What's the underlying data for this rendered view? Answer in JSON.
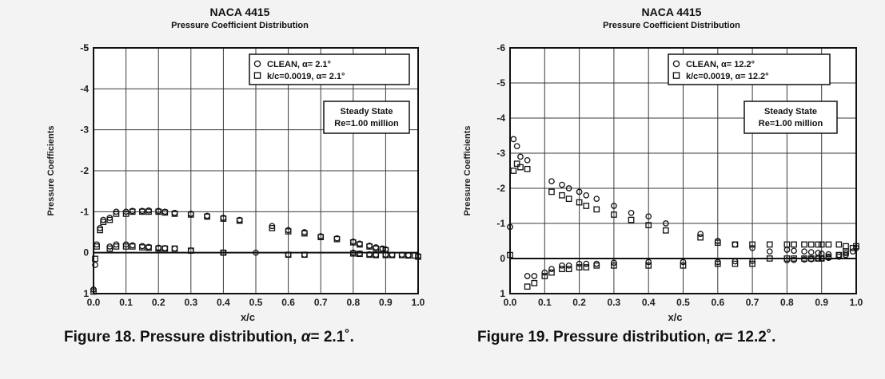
{
  "chart_data": [
    {
      "type": "scatter",
      "title": "NACA 4415",
      "subtitle": "Pressure Coefficient Distribution",
      "xlabel": "x/c",
      "ylabel": "Pressure Coefficients",
      "xlim": [
        0.0,
        1.0
      ],
      "ylim": [
        1,
        -5
      ],
      "y_axis_inverted": true,
      "grid": true,
      "x_ticks": [
        "0.0",
        "0.1",
        "0.2",
        "0.3",
        "0.4",
        "0.5",
        "0.6",
        "0.7",
        "0.8",
        "0.9",
        "1.0"
      ],
      "y_ticks": [
        "-5",
        "-5",
        "-4",
        "-3",
        "-2",
        "-1",
        "0",
        "1"
      ],
      "y_tick_values": [
        -5,
        -5,
        -4,
        -3,
        -2,
        -1,
        0,
        1
      ],
      "legend_position": "top-right",
      "legend": [
        "CLEAN, α= 2.1°",
        "k/c=0.0019, α= 2.1°"
      ],
      "annotation": [
        "Steady State",
        "Re=1.00 million"
      ],
      "series": [
        {
          "name": "CLEAN, α= 2.1°",
          "marker": "circle",
          "x": [
            0.0,
            0.005,
            0.01,
            0.02,
            0.03,
            0.05,
            0.05,
            0.07,
            0.07,
            0.1,
            0.1,
            0.12,
            0.12,
            0.15,
            0.15,
            0.17,
            0.17,
            0.2,
            0.2,
            0.22,
            0.22,
            0.25,
            0.25,
            0.3,
            0.3,
            0.35,
            0.4,
            0.4,
            0.45,
            0.5,
            0.55,
            0.6,
            0.6,
            0.65,
            0.65,
            0.7,
            0.75,
            0.8,
            0.8,
            0.82,
            0.82,
            0.85,
            0.85,
            0.87,
            0.87,
            0.89,
            0.9,
            0.9,
            0.92,
            0.95,
            0.97,
            1.0
          ],
          "y": [
            0.9,
            0.3,
            -0.2,
            -0.6,
            -0.8,
            -0.85,
            -0.15,
            -1.0,
            -0.2,
            -1.0,
            -0.2,
            -1.02,
            -0.18,
            -1.02,
            -0.16,
            -1.03,
            -0.14,
            -1.02,
            -0.12,
            -1.0,
            -0.11,
            -0.97,
            -0.1,
            -0.95,
            -0.05,
            -0.9,
            -0.85,
            0.0,
            -0.8,
            0.0,
            -0.65,
            -0.55,
            0.05,
            -0.5,
            0.05,
            -0.4,
            -0.35,
            -0.27,
            0.0,
            -0.22,
            0.02,
            -0.17,
            0.04,
            -0.13,
            0.05,
            -0.1,
            -0.08,
            0.05,
            0.05,
            0.05,
            0.06,
            0.08
          ]
        },
        {
          "name": "k/c=0.0019, α= 2.1°",
          "marker": "square",
          "x": [
            0.0,
            0.005,
            0.01,
            0.02,
            0.03,
            0.05,
            0.05,
            0.07,
            0.07,
            0.1,
            0.1,
            0.12,
            0.12,
            0.15,
            0.15,
            0.17,
            0.17,
            0.2,
            0.2,
            0.22,
            0.22,
            0.25,
            0.25,
            0.3,
            0.3,
            0.35,
            0.4,
            0.4,
            0.45,
            0.55,
            0.6,
            0.6,
            0.65,
            0.65,
            0.7,
            0.75,
            0.8,
            0.8,
            0.82,
            0.82,
            0.85,
            0.85,
            0.87,
            0.87,
            0.89,
            0.9,
            0.9,
            0.92,
            0.95,
            0.97,
            0.99,
            1.0
          ],
          "y": [
            0.95,
            0.15,
            -0.15,
            -0.55,
            -0.75,
            -0.8,
            -0.1,
            -0.95,
            -0.15,
            -0.95,
            -0.15,
            -1.0,
            -0.15,
            -1.0,
            -0.13,
            -1.0,
            -0.12,
            -1.0,
            -0.1,
            -0.98,
            -0.1,
            -0.95,
            -0.1,
            -0.93,
            -0.05,
            -0.88,
            -0.83,
            0.0,
            -0.78,
            -0.6,
            -0.52,
            0.05,
            -0.47,
            0.05,
            -0.38,
            -0.33,
            -0.25,
            0.02,
            -0.2,
            0.03,
            -0.15,
            0.05,
            -0.1,
            0.06,
            -0.08,
            -0.06,
            0.06,
            0.06,
            0.06,
            0.07,
            0.07,
            0.1
          ]
        }
      ]
    },
    {
      "type": "scatter",
      "title": "NACA 4415",
      "subtitle": "Pressure Coefficient Distribution",
      "xlabel": "x/c",
      "ylabel": "Pressure Coefficients",
      "xlim": [
        0.0,
        1.0
      ],
      "ylim": [
        1,
        -6
      ],
      "y_axis_inverted": true,
      "grid": true,
      "x_ticks": [
        "0.0",
        "0.1",
        "0.2",
        "0.3",
        "0.4",
        "0.5",
        "0.6",
        "0.7",
        "0.8",
        "0.9",
        "1.0"
      ],
      "y_ticks": [
        "-6",
        "-5",
        "-4",
        "-3",
        "-2",
        "-1",
        "0",
        "1"
      ],
      "y_tick_values": [
        -6,
        -5,
        -4,
        -3,
        -2,
        -1,
        0,
        1
      ],
      "legend_position": "top-right",
      "legend": [
        "CLEAN, α= 12.2°",
        "k/c=0.0019, α= 12.2°"
      ],
      "annotation": [
        "Steady State",
        "Re=1.00 million"
      ],
      "series": [
        {
          "name": "CLEAN, α= 12.2°",
          "marker": "circle",
          "x": [
            0.0,
            0.01,
            0.02,
            0.03,
            0.05,
            0.05,
            0.07,
            0.1,
            0.12,
            0.12,
            0.15,
            0.15,
            0.17,
            0.17,
            0.2,
            0.2,
            0.22,
            0.22,
            0.25,
            0.25,
            0.3,
            0.3,
            0.35,
            0.4,
            0.4,
            0.45,
            0.5,
            0.55,
            0.6,
            0.6,
            0.65,
            0.65,
            0.7,
            0.7,
            0.75,
            0.8,
            0.8,
            0.82,
            0.82,
            0.85,
            0.85,
            0.87,
            0.87,
            0.89,
            0.89,
            0.9,
            0.9,
            0.92,
            0.92,
            0.95,
            0.95,
            0.97,
            0.97,
            0.99,
            1.0
          ],
          "y": [
            -0.9,
            -3.4,
            -3.2,
            -2.9,
            -2.8,
            0.5,
            0.5,
            0.4,
            -2.2,
            0.3,
            -2.1,
            0.2,
            -2.0,
            0.2,
            -1.9,
            0.15,
            -1.8,
            0.15,
            -1.7,
            0.15,
            -1.5,
            0.12,
            -1.3,
            -1.2,
            0.1,
            -1.0,
            0.1,
            -0.7,
            -0.5,
            0.1,
            -0.4,
            0.08,
            -0.3,
            0.07,
            -0.2,
            -0.25,
            0.05,
            -0.22,
            0.04,
            -0.2,
            0.03,
            -0.18,
            0.02,
            -0.16,
            0.0,
            -0.14,
            0.0,
            -0.12,
            -0.02,
            -0.1,
            -0.05,
            -0.15,
            -0.1,
            -0.2,
            -0.3
          ]
        },
        {
          "name": "k/c=0.0019, α= 12.2°",
          "marker": "square",
          "x": [
            0.0,
            0.01,
            0.02,
            0.03,
            0.05,
            0.05,
            0.07,
            0.1,
            0.12,
            0.12,
            0.15,
            0.15,
            0.17,
            0.17,
            0.2,
            0.2,
            0.22,
            0.22,
            0.25,
            0.25,
            0.3,
            0.3,
            0.35,
            0.4,
            0.4,
            0.45,
            0.5,
            0.55,
            0.6,
            0.6,
            0.65,
            0.65,
            0.7,
            0.7,
            0.75,
            0.75,
            0.8,
            0.8,
            0.82,
            0.82,
            0.85,
            0.85,
            0.87,
            0.87,
            0.89,
            0.89,
            0.9,
            0.9,
            0.92,
            0.92,
            0.95,
            0.95,
            0.97,
            0.97,
            0.99,
            1.0
          ],
          "y": [
            -0.1,
            -2.5,
            -2.7,
            -2.6,
            -2.55,
            0.8,
            0.7,
            0.5,
            -1.9,
            0.4,
            -1.8,
            0.3,
            -1.7,
            0.3,
            -1.6,
            0.25,
            -1.5,
            0.25,
            -1.4,
            0.2,
            -1.25,
            0.2,
            -1.1,
            -0.95,
            0.2,
            -0.8,
            0.2,
            -0.6,
            -0.45,
            0.15,
            -0.4,
            0.15,
            -0.4,
            0.15,
            -0.4,
            0.0,
            -0.4,
            0.0,
            -0.4,
            0.0,
            -0.4,
            0.0,
            -0.4,
            0.0,
            -0.4,
            0.0,
            -0.4,
            0.0,
            -0.4,
            -0.05,
            -0.4,
            -0.1,
            -0.35,
            -0.2,
            -0.3,
            -0.35
          ]
        }
      ]
    }
  ],
  "captions": [
    {
      "lead": "Figure 18.  Pressure distribution, ",
      "alpha": "α",
      "tail": "= 2.1˚."
    },
    {
      "lead": "Figure 19.  Pressure distribution, ",
      "alpha": "α",
      "tail": "= 12.2˚."
    }
  ]
}
